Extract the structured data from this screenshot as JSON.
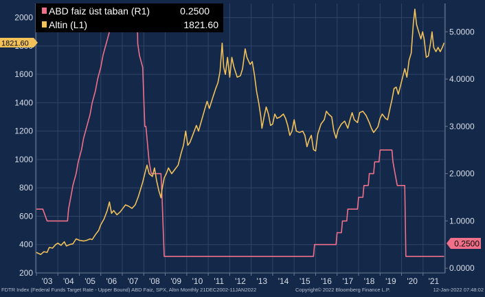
{
  "chart_data": {
    "type": "line",
    "title": "",
    "xlabel": "",
    "ylabel": "",
    "legend_position": "top-left",
    "grid": true,
    "x_range": [
      2002.97,
      2022.03
    ],
    "x_ticks": [
      "'03",
      "'04",
      "'05",
      "'06",
      "'07",
      "'08",
      "'09",
      "'10",
      "'11",
      "'12",
      "'13",
      "'14",
      "'15",
      "'16",
      "'17",
      "'18",
      "'19",
      "'20",
      "'21"
    ],
    "left_axis": {
      "range": [
        200,
        2100
      ],
      "ticks": [
        "2000",
        "1800",
        "1600",
        "1400",
        "1200",
        "1000",
        "800",
        "600",
        "400",
        "200"
      ]
    },
    "right_axis": {
      "range": [
        -0.1,
        5.6
      ],
      "ticks": [
        "5.0000",
        "4.0000",
        "3.0000",
        "2.0000",
        "1.0000",
        "0.0000"
      ]
    },
    "series": [
      {
        "name": "ABD faiz üst taban (R1)",
        "legend_value": "0.2500",
        "axis": "right",
        "color": "#f0708a",
        "points": [
          [
            2003.0,
            1.25
          ],
          [
            2003.3,
            1.25
          ],
          [
            2003.5,
            1.0
          ],
          [
            2004.0,
            1.0
          ],
          [
            2004.45,
            1.0
          ],
          [
            2004.5,
            1.25
          ],
          [
            2004.6,
            1.5
          ],
          [
            2004.7,
            1.75
          ],
          [
            2004.85,
            2.0
          ],
          [
            2004.95,
            2.25
          ],
          [
            2005.1,
            2.5
          ],
          [
            2005.2,
            2.75
          ],
          [
            2005.35,
            3.0
          ],
          [
            2005.5,
            3.25
          ],
          [
            2005.6,
            3.5
          ],
          [
            2005.75,
            3.75
          ],
          [
            2005.85,
            4.0
          ],
          [
            2006.0,
            4.25
          ],
          [
            2006.1,
            4.5
          ],
          [
            2006.25,
            4.75
          ],
          [
            2006.4,
            5.0
          ],
          [
            2006.5,
            5.25
          ],
          [
            2007.7,
            5.25
          ],
          [
            2007.72,
            4.75
          ],
          [
            2007.8,
            4.5
          ],
          [
            2007.95,
            4.25
          ],
          [
            2008.05,
            3.0
          ],
          [
            2008.1,
            3.0
          ],
          [
            2008.25,
            2.25
          ],
          [
            2008.35,
            2.0
          ],
          [
            2008.8,
            2.0
          ],
          [
            2008.85,
            1.5
          ],
          [
            2008.95,
            0.25
          ],
          [
            2015.9,
            0.25
          ],
          [
            2015.95,
            0.5
          ],
          [
            2016.95,
            0.5
          ],
          [
            2017.0,
            0.75
          ],
          [
            2017.2,
            0.75
          ],
          [
            2017.25,
            1.0
          ],
          [
            2017.45,
            1.0
          ],
          [
            2017.5,
            1.25
          ],
          [
            2017.95,
            1.25
          ],
          [
            2018.0,
            1.5
          ],
          [
            2018.2,
            1.5
          ],
          [
            2018.25,
            1.75
          ],
          [
            2018.45,
            1.75
          ],
          [
            2018.5,
            2.0
          ],
          [
            2018.7,
            2.0
          ],
          [
            2018.75,
            2.25
          ],
          [
            2018.95,
            2.25
          ],
          [
            2019.0,
            2.5
          ],
          [
            2019.55,
            2.5
          ],
          [
            2019.6,
            2.25
          ],
          [
            2019.7,
            2.0
          ],
          [
            2019.8,
            1.75
          ],
          [
            2020.15,
            1.75
          ],
          [
            2020.2,
            0.25
          ],
          [
            2021.98,
            0.25
          ]
        ]
      },
      {
        "name": "Altin (L1)",
        "legend_value": "1821.60",
        "axis": "left",
        "color": "#f2c15a",
        "points": [
          [
            2003.0,
            345
          ],
          [
            2003.2,
            330
          ],
          [
            2003.35,
            350
          ],
          [
            2003.5,
            345
          ],
          [
            2003.6,
            380
          ],
          [
            2003.75,
            375
          ],
          [
            2003.9,
            400
          ],
          [
            2004.0,
            410
          ],
          [
            2004.15,
            395
          ],
          [
            2004.3,
            420
          ],
          [
            2004.4,
            390
          ],
          [
            2004.55,
            400
          ],
          [
            2004.7,
            405
          ],
          [
            2004.85,
            440
          ],
          [
            2005.0,
            430
          ],
          [
            2005.2,
            425
          ],
          [
            2005.35,
            430
          ],
          [
            2005.5,
            440
          ],
          [
            2005.6,
            435
          ],
          [
            2005.75,
            470
          ],
          [
            2005.9,
            500
          ],
          [
            2006.0,
            540
          ],
          [
            2006.15,
            580
          ],
          [
            2006.3,
            640
          ],
          [
            2006.4,
            700
          ],
          [
            2006.5,
            620
          ],
          [
            2006.6,
            640
          ],
          [
            2006.75,
            610
          ],
          [
            2006.9,
            630
          ],
          [
            2007.0,
            650
          ],
          [
            2007.15,
            680
          ],
          [
            2007.3,
            670
          ],
          [
            2007.45,
            655
          ],
          [
            2007.6,
            680
          ],
          [
            2007.75,
            740
          ],
          [
            2007.85,
            790
          ],
          [
            2007.95,
            840
          ],
          [
            2008.05,
            900
          ],
          [
            2008.15,
            960
          ],
          [
            2008.25,
            900
          ],
          [
            2008.4,
            880
          ],
          [
            2008.5,
            940
          ],
          [
            2008.6,
            850
          ],
          [
            2008.7,
            780
          ],
          [
            2008.8,
            730
          ],
          [
            2008.85,
            790
          ],
          [
            2008.95,
            870
          ],
          [
            2009.05,
            900
          ],
          [
            2009.15,
            940
          ],
          [
            2009.3,
            900
          ],
          [
            2009.45,
            930
          ],
          [
            2009.6,
            960
          ],
          [
            2009.75,
            1050
          ],
          [
            2009.85,
            1100
          ],
          [
            2009.95,
            1200
          ],
          [
            2010.05,
            1100
          ],
          [
            2010.15,
            1120
          ],
          [
            2010.3,
            1180
          ],
          [
            2010.45,
            1240
          ],
          [
            2010.55,
            1200
          ],
          [
            2010.7,
            1280
          ],
          [
            2010.85,
            1360
          ],
          [
            2010.95,
            1410
          ],
          [
            2011.05,
            1360
          ],
          [
            2011.2,
            1430
          ],
          [
            2011.35,
            1500
          ],
          [
            2011.45,
            1540
          ],
          [
            2011.55,
            1620
          ],
          [
            2011.65,
            1820
          ],
          [
            2011.72,
            1650
          ],
          [
            2011.8,
            1600
          ],
          [
            2011.9,
            1720
          ],
          [
            2012.0,
            1580
          ],
          [
            2012.1,
            1720
          ],
          [
            2012.2,
            1650
          ],
          [
            2012.35,
            1580
          ],
          [
            2012.5,
            1590
          ],
          [
            2012.6,
            1640
          ],
          [
            2012.72,
            1780
          ],
          [
            2012.8,
            1720
          ],
          [
            2012.95,
            1670
          ],
          [
            2013.05,
            1690
          ],
          [
            2013.15,
            1600
          ],
          [
            2013.25,
            1480
          ],
          [
            2013.35,
            1400
          ],
          [
            2013.45,
            1300
          ],
          [
            2013.5,
            1220
          ],
          [
            2013.6,
            1300
          ],
          [
            2013.7,
            1370
          ],
          [
            2013.8,
            1320
          ],
          [
            2013.9,
            1240
          ],
          [
            2014.0,
            1250
          ],
          [
            2014.1,
            1320
          ],
          [
            2014.2,
            1290
          ],
          [
            2014.35,
            1300
          ],
          [
            2014.5,
            1320
          ],
          [
            2014.6,
            1290
          ],
          [
            2014.7,
            1240
          ],
          [
            2014.8,
            1170
          ],
          [
            2014.9,
            1200
          ],
          [
            2015.0,
            1280
          ],
          [
            2015.1,
            1200
          ],
          [
            2015.25,
            1190
          ],
          [
            2015.4,
            1200
          ],
          [
            2015.5,
            1170
          ],
          [
            2015.6,
            1090
          ],
          [
            2015.7,
            1140
          ],
          [
            2015.8,
            1170
          ],
          [
            2015.9,
            1070
          ],
          [
            2016.0,
            1060
          ],
          [
            2016.1,
            1180
          ],
          [
            2016.25,
            1250
          ],
          [
            2016.4,
            1280
          ],
          [
            2016.5,
            1340
          ],
          [
            2016.6,
            1320
          ],
          [
            2016.75,
            1300
          ],
          [
            2016.85,
            1200
          ],
          [
            2016.95,
            1150
          ],
          [
            2017.05,
            1210
          ],
          [
            2017.2,
            1250
          ],
          [
            2017.35,
            1270
          ],
          [
            2017.5,
            1220
          ],
          [
            2017.6,
            1280
          ],
          [
            2017.7,
            1330
          ],
          [
            2017.8,
            1280
          ],
          [
            2017.95,
            1260
          ],
          [
            2018.05,
            1330
          ],
          [
            2018.2,
            1340
          ],
          [
            2018.35,
            1310
          ],
          [
            2018.5,
            1260
          ],
          [
            2018.6,
            1220
          ],
          [
            2018.7,
            1190
          ],
          [
            2018.8,
            1210
          ],
          [
            2018.9,
            1230
          ],
          [
            2019.0,
            1290
          ],
          [
            2019.1,
            1320
          ],
          [
            2019.25,
            1290
          ],
          [
            2019.35,
            1280
          ],
          [
            2019.45,
            1350
          ],
          [
            2019.55,
            1420
          ],
          [
            2019.65,
            1500
          ],
          [
            2019.75,
            1510
          ],
          [
            2019.85,
            1460
          ],
          [
            2019.95,
            1520
          ],
          [
            2020.05,
            1580
          ],
          [
            2020.15,
            1640
          ],
          [
            2020.25,
            1580
          ],
          [
            2020.35,
            1700
          ],
          [
            2020.45,
            1750
          ],
          [
            2020.55,
            1960
          ],
          [
            2020.62,
            2060
          ],
          [
            2020.7,
            1950
          ],
          [
            2020.8,
            1900
          ],
          [
            2020.9,
            1850
          ],
          [
            2020.98,
            1900
          ],
          [
            2021.05,
            1850
          ],
          [
            2021.15,
            1720
          ],
          [
            2021.25,
            1730
          ],
          [
            2021.35,
            1820
          ],
          [
            2021.42,
            1900
          ],
          [
            2021.5,
            1790
          ],
          [
            2021.6,
            1760
          ],
          [
            2021.7,
            1790
          ],
          [
            2021.8,
            1760
          ],
          [
            2021.9,
            1790
          ],
          [
            2021.98,
            1821.6
          ]
        ]
      }
    ],
    "last_value_tags": {
      "left": "1821.60",
      "right": "0.2500"
    }
  },
  "footer": {
    "source": "FDTR Index (Federal Funds Target Rate - Upper Bound) ABD Faiz, SPX, Altın  Monthly 21DEC2002-11JAN2022",
    "copyright": "Copyright© 2022 Bloomberg Finance L.P.",
    "timestamp": "12-Jan-2022 07:48:02"
  },
  "colors": {
    "background": "#14294a",
    "grid": "#2f4468",
    "rate_series": "#f0708a",
    "gold_series": "#f2c15a",
    "legend_bg": "#000000"
  }
}
